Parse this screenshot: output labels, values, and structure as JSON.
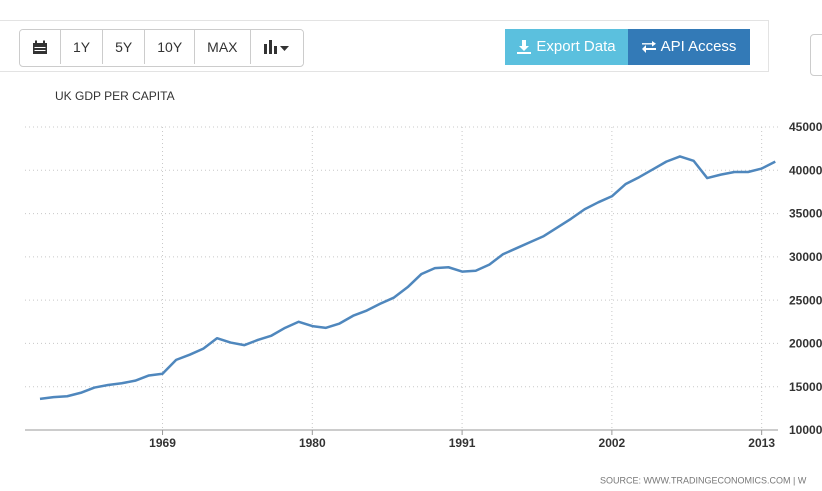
{
  "toolbar": {
    "buttons": [
      "1Y",
      "5Y",
      "10Y",
      "MAX"
    ],
    "export": "Export Data",
    "api": "API Access"
  },
  "chart_data": {
    "type": "line",
    "title": "UK GDP PER CAPITA",
    "source": "SOURCE: WWW.TRADINGECONOMICS.COM | W",
    "x": [
      1960,
      1961,
      1962,
      1963,
      1964,
      1965,
      1966,
      1967,
      1968,
      1969,
      1970,
      1971,
      1972,
      1973,
      1974,
      1975,
      1976,
      1977,
      1978,
      1979,
      1980,
      1981,
      1982,
      1983,
      1984,
      1985,
      1986,
      1987,
      1988,
      1989,
      1990,
      1991,
      1992,
      1993,
      1994,
      1995,
      1996,
      1997,
      1998,
      1999,
      2000,
      2001,
      2002,
      2003,
      2004,
      2005,
      2006,
      2007,
      2008,
      2009,
      2010,
      2011,
      2012,
      2013,
      2014
    ],
    "values": [
      13600,
      13800,
      13900,
      14300,
      14900,
      15200,
      15400,
      15700,
      16300,
      16500,
      18100,
      18700,
      19400,
      20600,
      20100,
      19800,
      20400,
      20900,
      21800,
      22500,
      22000,
      21800,
      22300,
      23200,
      23800,
      24600,
      25300,
      26500,
      28000,
      28700,
      28800,
      28300,
      28400,
      29100,
      30300,
      31000,
      31700,
      32400,
      33400,
      34400,
      35500,
      36300,
      37000,
      38400,
      39200,
      40100,
      41000,
      41600,
      41100,
      39100,
      39500,
      39800,
      39800,
      40200,
      41000
    ],
    "color": "#4f87bd",
    "xlim": [
      1958.9,
      2014.2
    ],
    "xticks": [
      1969,
      1980,
      1991,
      2002,
      2013
    ],
    "ylim": [
      10000,
      45000
    ],
    "yticks": [
      10000,
      15000,
      20000,
      25000,
      30000,
      35000,
      40000,
      45000
    ],
    "grid": true
  }
}
